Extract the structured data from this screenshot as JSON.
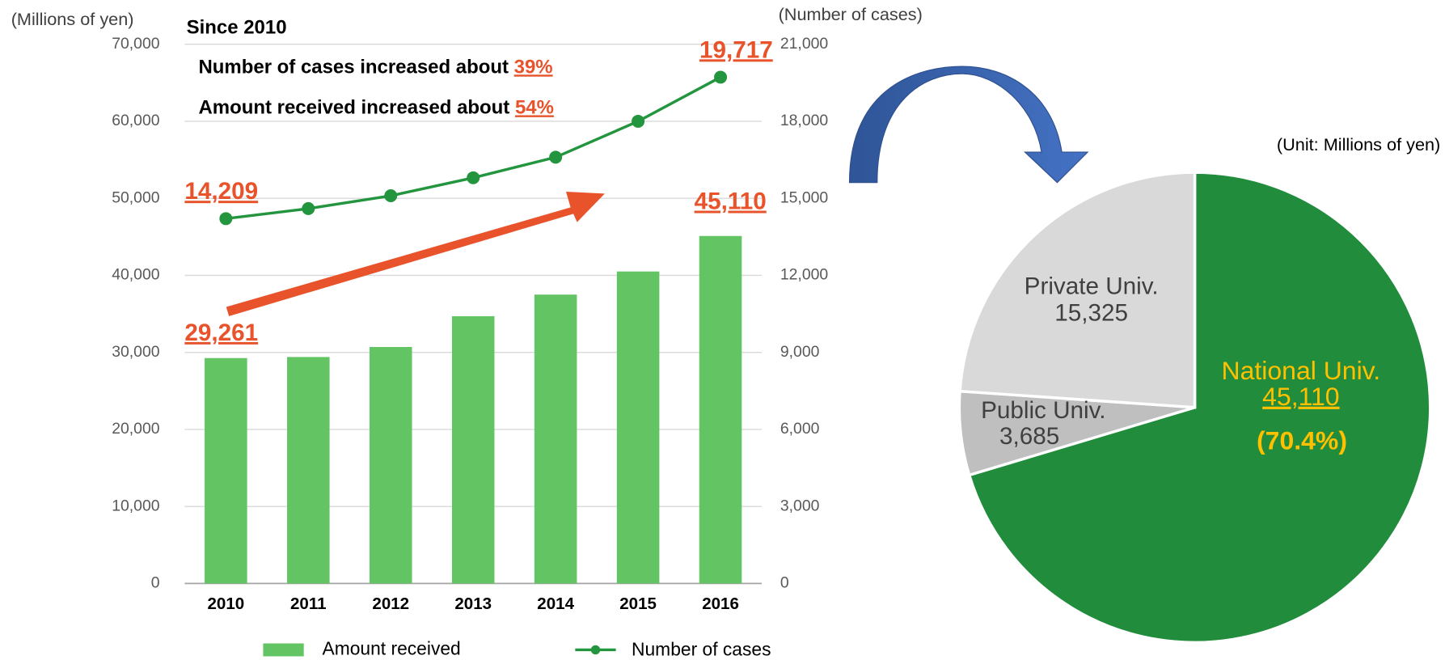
{
  "chart_data": [
    {
      "type": "bar",
      "categories": [
        "2010",
        "2011",
        "2012",
        "2013",
        "2014",
        "2015",
        "2016"
      ],
      "y_label": "(Millions of yen)",
      "y2_label": "(Number of cases)",
      "annotations": [
        "Since 2010",
        "Number of cases increased about ",
        "39%",
        "Amount received increased about ",
        "54%"
      ],
      "series": [
        {
          "name": "Amount received",
          "type": "bar",
          "color": "#62c462",
          "values": [
            29261,
            29400,
            30700,
            34700,
            37500,
            40500,
            45110
          ],
          "value_labels": [
            "29,261",
            null,
            null,
            null,
            null,
            null,
            "45,110"
          ]
        },
        {
          "name": "Number of cases",
          "type": "line",
          "axis": "y2",
          "color": "#23953e",
          "values": [
            14209,
            14600,
            15100,
            15800,
            16600,
            18000,
            19717
          ],
          "value_labels": [
            "14,209",
            null,
            null,
            null,
            null,
            null,
            "19,717"
          ]
        }
      ],
      "ylim": [
        0,
        70000
      ],
      "yticks": [
        {
          "value": 0,
          "label": "0"
        },
        {
          "value": 10000,
          "label": "10,000"
        },
        {
          "value": 20000,
          "label": "20,000"
        },
        {
          "value": 30000,
          "label": "30,000"
        },
        {
          "value": 40000,
          "label": "40,000"
        },
        {
          "value": 50000,
          "label": "50,000"
        },
        {
          "value": 60000,
          "label": "60,000"
        },
        {
          "value": 70000,
          "label": "70,000"
        }
      ],
      "y2lim": [
        0,
        21000
      ],
      "y2ticks": [
        {
          "value": 0,
          "label": "0"
        },
        {
          "value": 3000,
          "label": "3,000"
        },
        {
          "value": 6000,
          "label": "6,000"
        },
        {
          "value": 9000,
          "label": "9,000"
        },
        {
          "value": 12000,
          "label": "12,000"
        },
        {
          "value": 15000,
          "label": "15,000"
        },
        {
          "value": 18000,
          "label": "18,000"
        },
        {
          "value": 21000,
          "label": "21,000"
        }
      ],
      "grid": true
    },
    {
      "type": "pie",
      "subtitle": "(Unit: Millions of yen)",
      "categories": [
        "National Univ.",
        "Public Univ.",
        "Private Univ."
      ],
      "values": [
        45110,
        3685,
        15325
      ],
      "value_labels": [
        "45,110",
        "3,685",
        "15,325"
      ],
      "colors": [
        "#218c3b",
        "#bfbfbf",
        "#d9d9d9"
      ],
      "annotations": [
        "(70.4%)"
      ]
    }
  ]
}
